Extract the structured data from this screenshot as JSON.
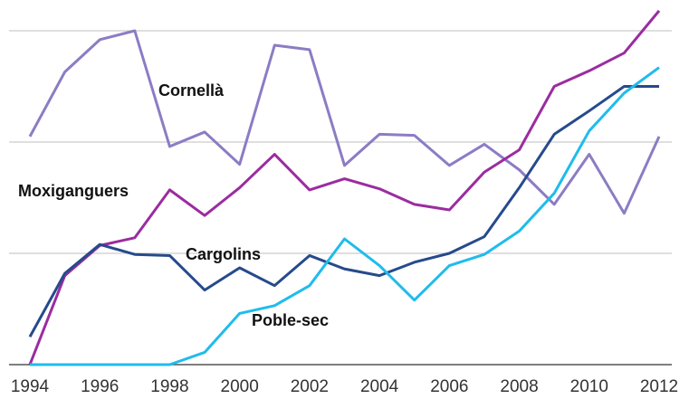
{
  "chart_data": {
    "type": "line",
    "x": [
      1994,
      1995,
      1996,
      1997,
      1998,
      1999,
      2000,
      2001,
      2002,
      2003,
      2004,
      2005,
      2006,
      2007,
      2008,
      2009,
      2010,
      2011,
      2012
    ],
    "xlim": [
      1994,
      2012
    ],
    "xticks": [
      1994,
      1996,
      1998,
      2000,
      2002,
      2004,
      2006,
      2008,
      2010,
      2012
    ],
    "ylim": [
      0,
      3.2
    ],
    "yticks": [
      0,
      1,
      2,
      3
    ],
    "grid": true,
    "series": [
      {
        "name": "Cornellà",
        "color": "#8c7cc4",
        "values": [
          2.05,
          2.63,
          2.92,
          3.0,
          1.96,
          2.09,
          1.8,
          2.87,
          2.83,
          1.79,
          2.07,
          2.06,
          1.79,
          1.98,
          1.75,
          1.44,
          1.89,
          1.36,
          2.05
        ]
      },
      {
        "name": "Moxiganguers",
        "color": "#9b2ca0",
        "values": [
          0,
          0.8,
          1.07,
          1.14,
          1.57,
          1.34,
          1.59,
          1.89,
          1.57,
          1.67,
          1.58,
          1.44,
          1.39,
          1.73,
          1.93,
          2.5,
          2.64,
          2.8,
          3.18
        ]
      },
      {
        "name": "Cargolins",
        "color": "#264a8c",
        "values": [
          0.25,
          0.82,
          1.08,
          0.99,
          0.98,
          0.67,
          0.87,
          0.71,
          0.98,
          0.86,
          0.8,
          0.92,
          1.0,
          1.15,
          1.59,
          2.07,
          2.28,
          2.5,
          2.5
        ]
      },
      {
        "name": "Poble-sec",
        "color": "#1fbcec",
        "values": [
          0,
          0,
          0,
          0,
          0,
          0.11,
          0.46,
          0.53,
          0.71,
          1.13,
          0.89,
          0.58,
          0.89,
          0.99,
          1.2,
          1.54,
          2.1,
          2.44,
          2.67
        ]
      }
    ]
  }
}
